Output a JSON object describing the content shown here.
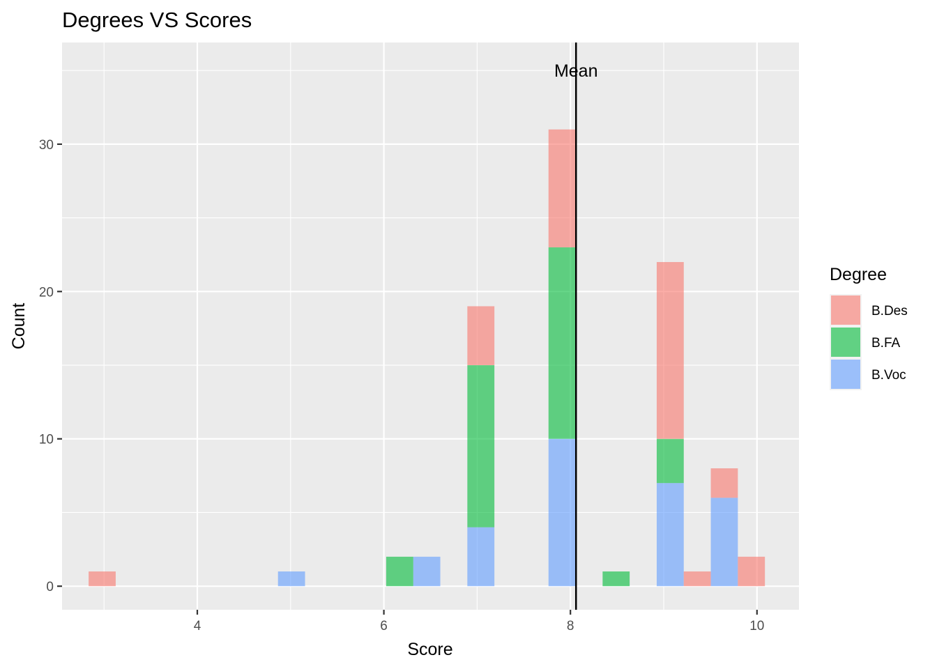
{
  "chart_data": {
    "type": "bar",
    "stacked": true,
    "title": "Degrees VS Scores",
    "xlabel": "Score",
    "ylabel": "Count",
    "xlim": [
      2.55,
      10.45
    ],
    "ylim": [
      -1.6,
      36.9
    ],
    "x_ticks": [
      4,
      6,
      8,
      10
    ],
    "y_ticks": [
      0,
      10,
      20,
      30
    ],
    "bin_width": 0.29,
    "grid": true,
    "legend": {
      "title": "Degree",
      "position": "right",
      "entries": [
        "B.Des",
        "B.FA",
        "B.Voc"
      ]
    },
    "series": [
      {
        "name": "B.Des",
        "color": "#F8766D",
        "points": [
          {
            "x": 2.98,
            "y": 1
          },
          {
            "x": 7.04,
            "y": 4
          },
          {
            "x": 7.91,
            "y": 8
          },
          {
            "x": 9.07,
            "y": 12
          },
          {
            "x": 9.36,
            "y": 1
          },
          {
            "x": 9.65,
            "y": 2
          },
          {
            "x": 9.94,
            "y": 2
          }
        ]
      },
      {
        "name": "B.FA",
        "color": "#00BA38",
        "points": [
          {
            "x": 6.17,
            "y": 2
          },
          {
            "x": 7.04,
            "y": 11
          },
          {
            "x": 7.91,
            "y": 13
          },
          {
            "x": 8.49,
            "y": 1
          },
          {
            "x": 9.07,
            "y": 3
          }
        ]
      },
      {
        "name": "B.Voc",
        "color": "#619CFF",
        "points": [
          {
            "x": 5.01,
            "y": 1
          },
          {
            "x": 6.46,
            "y": 2
          },
          {
            "x": 7.04,
            "y": 4
          },
          {
            "x": 7.91,
            "y": 10
          },
          {
            "x": 9.07,
            "y": 7
          },
          {
            "x": 9.65,
            "y": 6
          }
        ]
      }
    ],
    "stack_order_bottom_to_top": [
      "B.Voc",
      "B.FA",
      "B.Des"
    ],
    "bar_alpha": 0.6,
    "mean_line": {
      "x": 8.06,
      "label": "Mean",
      "label_y": 35
    }
  }
}
